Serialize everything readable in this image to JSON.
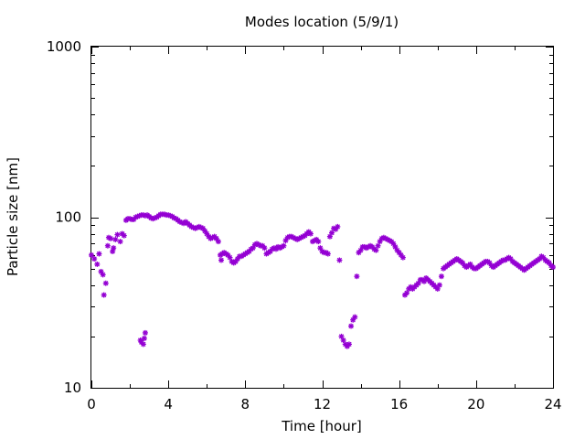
{
  "chart_data": {
    "type": "scatter",
    "title": "Modes location (5/9/1)",
    "xlabel": "Time [hour]",
    "ylabel": "Particle size [nm]",
    "xlim": [
      0,
      24
    ],
    "ylim": [
      10,
      1000
    ],
    "y_scale": "log",
    "x_ticks": [
      0,
      4,
      8,
      12,
      16,
      20,
      24
    ],
    "x_tick_labels": [
      "0",
      "4",
      "8",
      "12",
      "16",
      "20",
      "24"
    ],
    "x_minor_ticks": [
      2,
      6,
      10,
      14,
      18,
      22
    ],
    "y_ticks": [
      10,
      100,
      1000
    ],
    "y_tick_labels": [
      "10",
      "100",
      "1000"
    ],
    "grid": false,
    "marker_color": "#9400d3",
    "series": [
      {
        "points": [
          [
            0.0,
            60
          ],
          [
            0.15,
            57
          ],
          [
            0.3,
            53
          ],
          [
            0.4,
            61
          ],
          [
            0.5,
            48
          ],
          [
            0.6,
            46
          ],
          [
            0.65,
            35
          ],
          [
            0.75,
            41
          ],
          [
            0.85,
            68
          ],
          [
            0.9,
            76
          ],
          [
            1.0,
            75
          ],
          [
            1.1,
            63
          ],
          [
            1.15,
            66
          ],
          [
            1.25,
            74
          ],
          [
            1.35,
            79
          ],
          [
            1.5,
            72
          ],
          [
            1.6,
            80
          ],
          [
            1.7,
            78
          ],
          [
            1.8,
            96
          ],
          [
            1.9,
            98
          ],
          [
            2.0,
            98
          ],
          [
            2.1,
            97
          ],
          [
            2.2,
            97
          ],
          [
            2.3,
            100
          ],
          [
            2.4,
            101
          ],
          [
            2.5,
            102
          ],
          [
            2.6,
            103
          ],
          [
            2.7,
            103
          ],
          [
            2.8,
            102
          ],
          [
            2.9,
            103
          ],
          [
            3.0,
            101
          ],
          [
            3.1,
            99
          ],
          [
            3.2,
            98
          ],
          [
            3.3,
            99
          ],
          [
            3.4,
            100
          ],
          [
            3.5,
            102
          ],
          [
            3.6,
            104
          ],
          [
            3.7,
            104
          ],
          [
            3.8,
            104
          ],
          [
            3.9,
            103
          ],
          [
            4.0,
            103
          ],
          [
            4.1,
            102
          ],
          [
            4.2,
            101
          ],
          [
            4.3,
            99
          ],
          [
            4.4,
            98
          ],
          [
            4.5,
            96
          ],
          [
            4.6,
            94
          ],
          [
            4.7,
            93
          ],
          [
            4.8,
            92
          ],
          [
            4.9,
            94
          ],
          [
            5.0,
            92
          ],
          [
            5.1,
            90
          ],
          [
            5.2,
            88
          ],
          [
            5.3,
            87
          ],
          [
            5.4,
            86
          ],
          [
            5.5,
            87
          ],
          [
            5.6,
            88
          ],
          [
            5.7,
            87
          ],
          [
            5.8,
            86
          ],
          [
            5.9,
            83
          ],
          [
            6.0,
            80
          ],
          [
            6.1,
            77
          ],
          [
            6.2,
            75
          ],
          [
            6.3,
            76
          ],
          [
            6.4,
            77
          ],
          [
            6.5,
            75
          ],
          [
            6.6,
            72
          ],
          [
            6.7,
            60
          ],
          [
            6.75,
            56
          ],
          [
            6.8,
            61
          ],
          [
            6.9,
            62
          ],
          [
            7.0,
            61
          ],
          [
            7.1,
            60
          ],
          [
            7.2,
            58
          ],
          [
            7.3,
            55
          ],
          [
            7.4,
            54
          ],
          [
            7.5,
            55
          ],
          [
            7.6,
            57
          ],
          [
            7.7,
            59
          ],
          [
            7.8,
            59
          ],
          [
            7.9,
            60
          ],
          [
            8.0,
            61
          ],
          [
            8.1,
            62
          ],
          [
            8.2,
            63
          ],
          [
            8.3,
            65
          ],
          [
            8.4,
            66
          ],
          [
            8.5,
            69
          ],
          [
            8.6,
            70
          ],
          [
            8.7,
            69
          ],
          [
            8.8,
            68
          ],
          [
            8.9,
            68
          ],
          [
            9.0,
            66
          ],
          [
            9.1,
            61
          ],
          [
            9.2,
            62
          ],
          [
            9.3,
            63
          ],
          [
            9.4,
            65
          ],
          [
            9.5,
            66
          ],
          [
            9.6,
            65
          ],
          [
            9.7,
            67
          ],
          [
            9.8,
            66
          ],
          [
            9.9,
            67
          ],
          [
            10.0,
            68
          ],
          [
            10.1,
            73
          ],
          [
            10.2,
            76
          ],
          [
            10.3,
            77
          ],
          [
            10.4,
            77
          ],
          [
            10.5,
            76
          ],
          [
            10.6,
            75
          ],
          [
            10.7,
            74
          ],
          [
            10.8,
            75
          ],
          [
            10.9,
            76
          ],
          [
            11.0,
            77
          ],
          [
            11.1,
            78
          ],
          [
            11.2,
            80
          ],
          [
            11.3,
            82
          ],
          [
            11.4,
            80
          ],
          [
            11.5,
            72
          ],
          [
            11.6,
            73
          ],
          [
            11.7,
            74
          ],
          [
            11.8,
            72
          ],
          [
            11.9,
            66
          ],
          [
            12.0,
            63
          ],
          [
            12.1,
            62
          ],
          [
            12.2,
            62
          ],
          [
            12.3,
            61
          ],
          [
            12.4,
            77
          ],
          [
            12.5,
            81
          ],
          [
            12.6,
            86
          ],
          [
            12.7,
            85
          ],
          [
            12.8,
            88
          ],
          [
            12.9,
            56
          ],
          [
            13.0,
            20
          ],
          [
            13.1,
            19
          ],
          [
            13.2,
            18
          ],
          [
            13.3,
            17.5
          ],
          [
            13.4,
            18
          ],
          [
            13.5,
            23
          ],
          [
            13.6,
            25
          ],
          [
            13.7,
            26
          ],
          [
            13.8,
            45
          ],
          [
            13.9,
            62
          ],
          [
            14.0,
            64
          ],
          [
            14.1,
            67
          ],
          [
            14.2,
            67
          ],
          [
            14.3,
            66
          ],
          [
            14.4,
            67
          ],
          [
            14.5,
            68
          ],
          [
            14.6,
            67
          ],
          [
            14.7,
            65
          ],
          [
            14.8,
            64
          ],
          [
            14.9,
            68
          ],
          [
            15.0,
            72
          ],
          [
            15.1,
            75
          ],
          [
            15.2,
            76
          ],
          [
            15.3,
            75
          ],
          [
            15.4,
            74
          ],
          [
            15.5,
            73
          ],
          [
            15.6,
            72
          ],
          [
            15.7,
            70
          ],
          [
            15.8,
            67
          ],
          [
            15.9,
            64
          ],
          [
            16.0,
            62
          ],
          [
            16.1,
            60
          ],
          [
            16.2,
            58
          ],
          [
            16.3,
            35
          ],
          [
            16.4,
            36
          ],
          [
            16.5,
            38
          ],
          [
            16.6,
            39
          ],
          [
            16.7,
            38
          ],
          [
            16.8,
            39
          ],
          [
            16.9,
            40
          ],
          [
            17.0,
            41
          ],
          [
            17.1,
            43
          ],
          [
            17.2,
            43
          ],
          [
            17.3,
            42
          ],
          [
            17.4,
            44
          ],
          [
            17.5,
            43
          ],
          [
            17.6,
            42
          ],
          [
            17.7,
            41
          ],
          [
            17.8,
            40
          ],
          [
            17.9,
            39
          ],
          [
            18.0,
            38
          ],
          [
            18.1,
            40
          ],
          [
            18.2,
            45
          ],
          [
            18.3,
            50
          ],
          [
            18.4,
            51
          ],
          [
            18.5,
            52
          ],
          [
            18.6,
            53
          ],
          [
            18.7,
            54
          ],
          [
            18.8,
            55
          ],
          [
            18.9,
            56
          ],
          [
            19.0,
            57
          ],
          [
            19.1,
            56
          ],
          [
            19.2,
            55
          ],
          [
            19.3,
            54
          ],
          [
            19.4,
            52
          ],
          [
            19.5,
            51
          ],
          [
            19.6,
            52
          ],
          [
            19.7,
            53
          ],
          [
            19.8,
            51
          ],
          [
            19.9,
            50
          ],
          [
            20.0,
            50
          ],
          [
            20.1,
            51
          ],
          [
            20.2,
            52
          ],
          [
            20.3,
            53
          ],
          [
            20.4,
            54
          ],
          [
            20.5,
            55
          ],
          [
            20.6,
            55
          ],
          [
            20.7,
            54
          ],
          [
            20.8,
            52
          ],
          [
            20.9,
            51
          ],
          [
            21.0,
            52
          ],
          [
            21.1,
            53
          ],
          [
            21.2,
            54
          ],
          [
            21.3,
            55
          ],
          [
            21.4,
            56
          ],
          [
            21.5,
            56
          ],
          [
            21.6,
            57
          ],
          [
            21.7,
            58
          ],
          [
            21.8,
            57
          ],
          [
            21.9,
            55
          ],
          [
            22.0,
            54
          ],
          [
            22.1,
            53
          ],
          [
            22.2,
            52
          ],
          [
            22.3,
            51
          ],
          [
            22.4,
            50
          ],
          [
            22.5,
            49
          ],
          [
            22.6,
            50
          ],
          [
            22.7,
            51
          ],
          [
            22.8,
            52
          ],
          [
            22.9,
            53
          ],
          [
            23.0,
            54
          ],
          [
            23.1,
            55
          ],
          [
            23.2,
            56
          ],
          [
            23.3,
            57
          ],
          [
            23.4,
            59
          ],
          [
            23.5,
            58
          ],
          [
            23.6,
            56
          ],
          [
            23.7,
            55
          ],
          [
            23.8,
            54
          ],
          [
            23.9,
            52
          ],
          [
            24.0,
            51
          ],
          [
            2.55,
            19
          ],
          [
            2.6,
            18.5
          ],
          [
            2.7,
            18
          ],
          [
            2.75,
            19.5
          ],
          [
            2.8,
            21
          ]
        ]
      }
    ]
  }
}
